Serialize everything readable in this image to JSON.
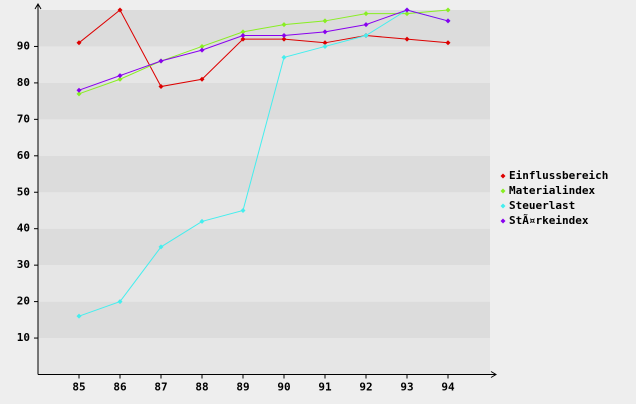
{
  "chart_data": {
    "type": "line",
    "categories": [
      "85",
      "86",
      "87",
      "88",
      "89",
      "90",
      "91",
      "92",
      "93",
      "94"
    ],
    "series": [
      {
        "name": "Einflussbereich",
        "color": "#dd0000",
        "values": [
          91,
          100,
          79,
          81,
          92,
          92,
          91,
          93,
          92,
          91
        ]
      },
      {
        "name": "Materialindex",
        "color": "#88ee22",
        "values": [
          77,
          81,
          86,
          90,
          94,
          96,
          97,
          99,
          99,
          100
        ]
      },
      {
        "name": "Steuerlast",
        "color": "#44eeee",
        "values": [
          16,
          20,
          35,
          42,
          45,
          87,
          90,
          93,
          100,
          97
        ]
      },
      {
        "name": "StÃ¤rkeindex",
        "color": "#8800ee",
        "values": [
          78,
          82,
          86,
          89,
          93,
          93,
          94,
          96,
          100,
          97
        ]
      }
    ],
    "ylim": [
      0,
      100
    ],
    "yticks": [
      10,
      20,
      30,
      40,
      50,
      60,
      70,
      80,
      90
    ],
    "grid": true,
    "legend": "right"
  }
}
